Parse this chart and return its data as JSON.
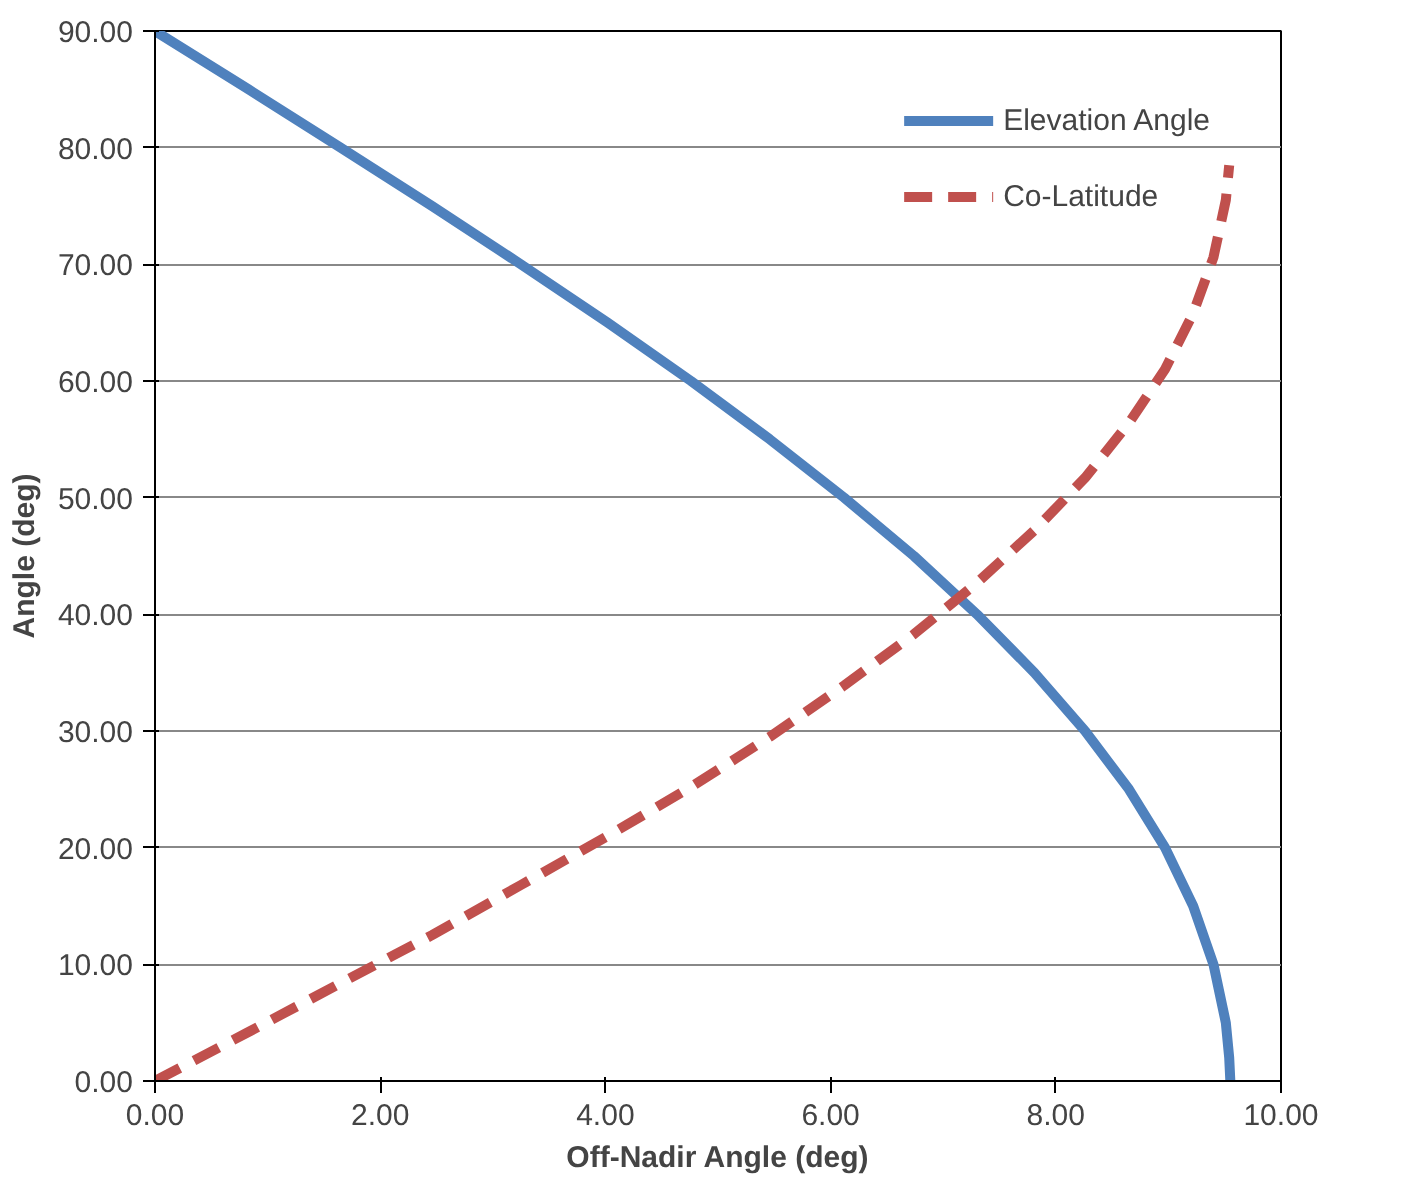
{
  "chart_data": {
    "type": "line",
    "xlabel": "Off-Nadir Angle (deg)",
    "ylabel": "Angle (deg)",
    "xlim": [
      0,
      10
    ],
    "ylim": [
      0,
      90
    ],
    "xticks": [
      {
        "value": 0,
        "label": "0.00"
      },
      {
        "value": 2,
        "label": "2.00"
      },
      {
        "value": 4,
        "label": "4.00"
      },
      {
        "value": 6,
        "label": "6.00"
      },
      {
        "value": 8,
        "label": "8.00"
      },
      {
        "value": 10,
        "label": "10.00"
      }
    ],
    "yticks": [
      {
        "value": 0,
        "label": "0.00"
      },
      {
        "value": 10,
        "label": "10.00"
      },
      {
        "value": 20,
        "label": "20.00"
      },
      {
        "value": 30,
        "label": "30.00"
      },
      {
        "value": 40,
        "label": "40.00"
      },
      {
        "value": 50,
        "label": "50.00"
      },
      {
        "value": 60,
        "label": "60.00"
      },
      {
        "value": 70,
        "label": "70.00"
      },
      {
        "value": 80,
        "label": "80.00"
      },
      {
        "value": 90,
        "label": "90.00"
      }
    ],
    "grid": "y",
    "legend": "top right",
    "marker": "none",
    "series": [
      {
        "name": "Elevation Angle",
        "color": "#4f81bd",
        "line_style": "solid",
        "x": [
          0,
          0.83,
          1.65,
          2.46,
          3.25,
          4.02,
          4.76,
          5.46,
          6.12,
          6.74,
          7.3,
          7.81,
          8.26,
          8.65,
          8.97,
          9.22,
          9.4,
          9.51,
          9.54,
          9.55
        ],
        "values": [
          90,
          85,
          80,
          75,
          70,
          65,
          60,
          55,
          50,
          45,
          40,
          35,
          30,
          25,
          20,
          15,
          10,
          5,
          2,
          0
        ]
      },
      {
        "name": "Co-Latitude",
        "color": "#c0504d",
        "line_style": "dashed",
        "x": [
          0,
          0.83,
          1.65,
          2.46,
          3.25,
          4.02,
          4.76,
          5.46,
          6.12,
          6.74,
          7.3,
          7.81,
          8.26,
          8.65,
          8.97,
          9.22,
          9.4,
          9.51,
          9.54
        ],
        "values": [
          0,
          4.2,
          8.4,
          12.5,
          16.8,
          21.0,
          25.2,
          29.5,
          33.9,
          38.3,
          42.7,
          47.2,
          51.7,
          56.4,
          61.0,
          65.8,
          70.6,
          75.5,
          78.5
        ]
      }
    ]
  }
}
